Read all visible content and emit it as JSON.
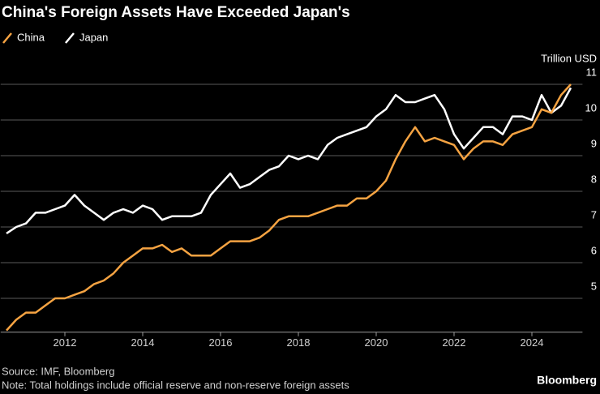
{
  "chart_data": {
    "type": "line",
    "title": "China's Foreign Assets Have Exceeded Japan's",
    "y_axis_label": "Trillion USD",
    "source": "Source: IMF, Bloomberg",
    "note": "Note: Total holdings include official reserve and non-reserve foreign assets",
    "brand": "Bloomberg",
    "x": [
      2010.5,
      2010.75,
      2011,
      2011.25,
      2011.5,
      2011.75,
      2012,
      2012.25,
      2012.5,
      2012.75,
      2013,
      2013.25,
      2013.5,
      2013.75,
      2014,
      2014.25,
      2014.5,
      2014.75,
      2015,
      2015.25,
      2015.5,
      2015.75,
      2016,
      2016.25,
      2016.5,
      2016.75,
      2017,
      2017.25,
      2017.5,
      2017.75,
      2018,
      2018.25,
      2018.5,
      2018.75,
      2019,
      2019.25,
      2019.5,
      2019.75,
      2020,
      2020.25,
      2020.5,
      2020.75,
      2021,
      2021.25,
      2021.5,
      2021.75,
      2022,
      2022.25,
      2022.5,
      2022.75,
      2023,
      2023.25,
      2023.5,
      2023.75,
      2024,
      2024.25,
      2024.5,
      2024.75,
      2025
    ],
    "series": [
      {
        "name": "China",
        "color": "#f5a342",
        "values": [
          4.1,
          4.4,
          4.6,
          4.6,
          4.8,
          5.0,
          5.0,
          5.1,
          5.2,
          5.4,
          5.5,
          5.7,
          6.0,
          6.2,
          6.4,
          6.4,
          6.5,
          6.3,
          6.4,
          6.2,
          6.2,
          6.2,
          6.4,
          6.6,
          6.6,
          6.6,
          6.7,
          6.9,
          7.2,
          7.3,
          7.3,
          7.3,
          7.4,
          7.5,
          7.6,
          7.6,
          7.8,
          7.8,
          8.0,
          8.3,
          8.9,
          9.4,
          9.8,
          9.4,
          9.5,
          9.4,
          9.3,
          8.9,
          9.2,
          9.4,
          9.4,
          9.3,
          9.6,
          9.7,
          9.8,
          10.3,
          10.2,
          10.7,
          11.0
        ]
      },
      {
        "name": "Japan",
        "color": "#ffffff",
        "values": [
          6.82,
          7.0,
          7.1,
          7.4,
          7.4,
          7.5,
          7.6,
          7.9,
          7.6,
          7.4,
          7.2,
          7.4,
          7.5,
          7.4,
          7.6,
          7.5,
          7.2,
          7.3,
          7.3,
          7.3,
          7.4,
          7.9,
          8.2,
          8.5,
          8.1,
          8.2,
          8.4,
          8.6,
          8.7,
          9.0,
          8.9,
          9.0,
          8.9,
          9.3,
          9.5,
          9.6,
          9.7,
          9.8,
          10.1,
          10.3,
          10.7,
          10.5,
          10.5,
          10.6,
          10.7,
          10.3,
          9.6,
          9.2,
          9.5,
          9.8,
          9.8,
          9.6,
          10.1,
          10.1,
          10.0,
          10.7,
          10.2,
          10.4,
          10.9
        ]
      }
    ],
    "xlim": [
      2010.35,
      2025.3
    ],
    "xticks": [
      2012,
      2014,
      2016,
      2018,
      2020,
      2022,
      2024
    ],
    "ylim": [
      4.05,
      11.2
    ],
    "yticks": [
      5,
      6,
      7,
      8,
      9,
      10,
      11
    ],
    "grid": true,
    "y_axis_side": "right"
  }
}
